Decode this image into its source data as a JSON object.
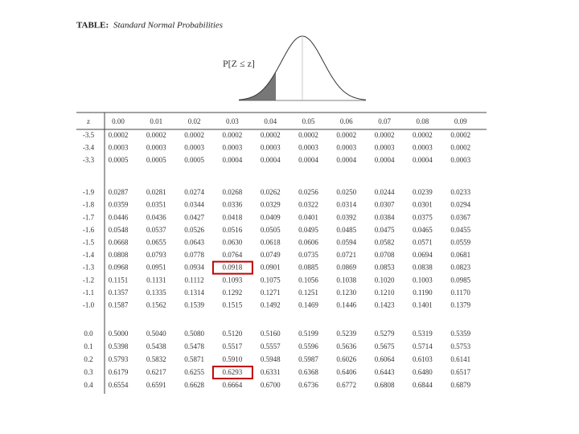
{
  "header": {
    "title_label": "TABLE:",
    "title_text": "Standard Normal Probabilities",
    "curve_label": "P[Z ≤ z]"
  },
  "table": {
    "z_header": "z",
    "columns": [
      "0.00",
      "0.01",
      "0.02",
      "0.03",
      "0.04",
      "0.05",
      "0.06",
      "0.07",
      "0.08",
      "0.09"
    ],
    "groups": [
      {
        "rows": [
          [
            "-3.5",
            "0.0002",
            "0.0002",
            "0.0002",
            "0.0002",
            "0.0002",
            "0.0002",
            "0.0002",
            "0.0002",
            "0.0002",
            "0.0002"
          ],
          [
            "-3.4",
            "0.0003",
            "0.0003",
            "0.0003",
            "0.0003",
            "0.0003",
            "0.0003",
            "0.0003",
            "0.0003",
            "0.0003",
            "0.0002"
          ],
          [
            "-3.3",
            "0.0005",
            "0.0005",
            "0.0005",
            "0.0004",
            "0.0004",
            "0.0004",
            "0.0004",
            "0.0004",
            "0.0004",
            "0.0003"
          ]
        ]
      },
      {
        "rows": [
          [
            "-1.9",
            "0.0287",
            "0.0281",
            "0.0274",
            "0.0268",
            "0.0262",
            "0.0256",
            "0.0250",
            "0.0244",
            "0.0239",
            "0.0233"
          ],
          [
            "-1.8",
            "0.0359",
            "0.0351",
            "0.0344",
            "0.0336",
            "0.0329",
            "0.0322",
            "0.0314",
            "0.0307",
            "0.0301",
            "0.0294"
          ],
          [
            "-1.7",
            "0.0446",
            "0.0436",
            "0.0427",
            "0.0418",
            "0.0409",
            "0.0401",
            "0.0392",
            "0.0384",
            "0.0375",
            "0.0367"
          ],
          [
            "-1.6",
            "0.0548",
            "0.0537",
            "0.0526",
            "0.0516",
            "0.0505",
            "0.0495",
            "0.0485",
            "0.0475",
            "0.0465",
            "0.0455"
          ],
          [
            "-1.5",
            "0.0668",
            "0.0655",
            "0.0643",
            "0.0630",
            "0.0618",
            "0.0606",
            "0.0594",
            "0.0582",
            "0.0571",
            "0.0559"
          ],
          [
            "-1.4",
            "0.0808",
            "0.0793",
            "0.0778",
            "0.0764",
            "0.0749",
            "0.0735",
            "0.0721",
            "0.0708",
            "0.0694",
            "0.0681"
          ],
          [
            "-1.3",
            "0.0968",
            "0.0951",
            "0.0934",
            "0.0918",
            "0.0901",
            "0.0885",
            "0.0869",
            "0.0853",
            "0.0838",
            "0.0823"
          ],
          [
            "-1.2",
            "0.1151",
            "0.1131",
            "0.1112",
            "0.1093",
            "0.1075",
            "0.1056",
            "0.1038",
            "0.1020",
            "0.1003",
            "0.0985"
          ],
          [
            "-1.1",
            "0.1357",
            "0.1335",
            "0.1314",
            "0.1292",
            "0.1271",
            "0.1251",
            "0.1230",
            "0.1210",
            "0.1190",
            "0.1170"
          ],
          [
            "-1.0",
            "0.1587",
            "0.1562",
            "0.1539",
            "0.1515",
            "0.1492",
            "0.1469",
            "0.1446",
            "0.1423",
            "0.1401",
            "0.1379"
          ]
        ]
      },
      {
        "rows": [
          [
            "0.0",
            "0.5000",
            "0.5040",
            "0.5080",
            "0.5120",
            "0.5160",
            "0.5199",
            "0.5239",
            "0.5279",
            "0.5319",
            "0.5359"
          ],
          [
            "0.1",
            "0.5398",
            "0.5438",
            "0.5478",
            "0.5517",
            "0.5557",
            "0.5596",
            "0.5636",
            "0.5675",
            "0.5714",
            "0.5753"
          ],
          [
            "0.2",
            "0.5793",
            "0.5832",
            "0.5871",
            "0.5910",
            "0.5948",
            "0.5987",
            "0.6026",
            "0.6064",
            "0.6103",
            "0.6141"
          ],
          [
            "0.3",
            "0.6179",
            "0.6217",
            "0.6255",
            "0.6293",
            "0.6331",
            "0.6368",
            "0.6406",
            "0.6443",
            "0.6480",
            "0.6517"
          ],
          [
            "0.4",
            "0.6554",
            "0.6591",
            "0.6628",
            "0.6664",
            "0.6700",
            "0.6736",
            "0.6772",
            "0.6808",
            "0.6844",
            "0.6879"
          ]
        ]
      }
    ]
  }
}
